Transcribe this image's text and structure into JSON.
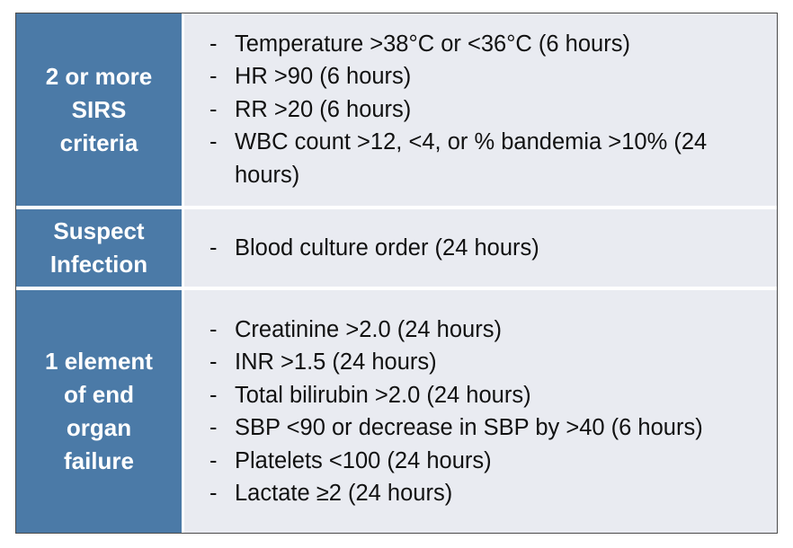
{
  "table": {
    "rows": [
      {
        "label": "2 or more\nSIRS\ncriteria",
        "items": [
          "Temperature >38°C or <36°C (6 hours)",
          "HR >90 (6 hours)",
          "RR >20 (6 hours)",
          "WBC count >12, <4, or % bandemia >10% (24 hours)"
        ]
      },
      {
        "label": "Suspect\nInfection",
        "items": [
          "Blood culture order (24 hours)"
        ]
      },
      {
        "label": "1 element\nof end\norgan\nfailure",
        "items": [
          "Creatinine >2.0 (24 hours)",
          "INR >1.5 (24 hours)",
          "Total bilirubin >2.0 (24 hours)",
          "SBP <90 or decrease in SBP by >40 (6 hours)",
          "Platelets <100 (24 hours)",
          "Lactate ≥2 (24 hours)"
        ]
      }
    ],
    "bullet": "-"
  },
  "colors": {
    "label_background": "#4b7aa7",
    "content_background": "#e9ebf1",
    "label_text": "#ffffff",
    "content_text": "#111111"
  }
}
